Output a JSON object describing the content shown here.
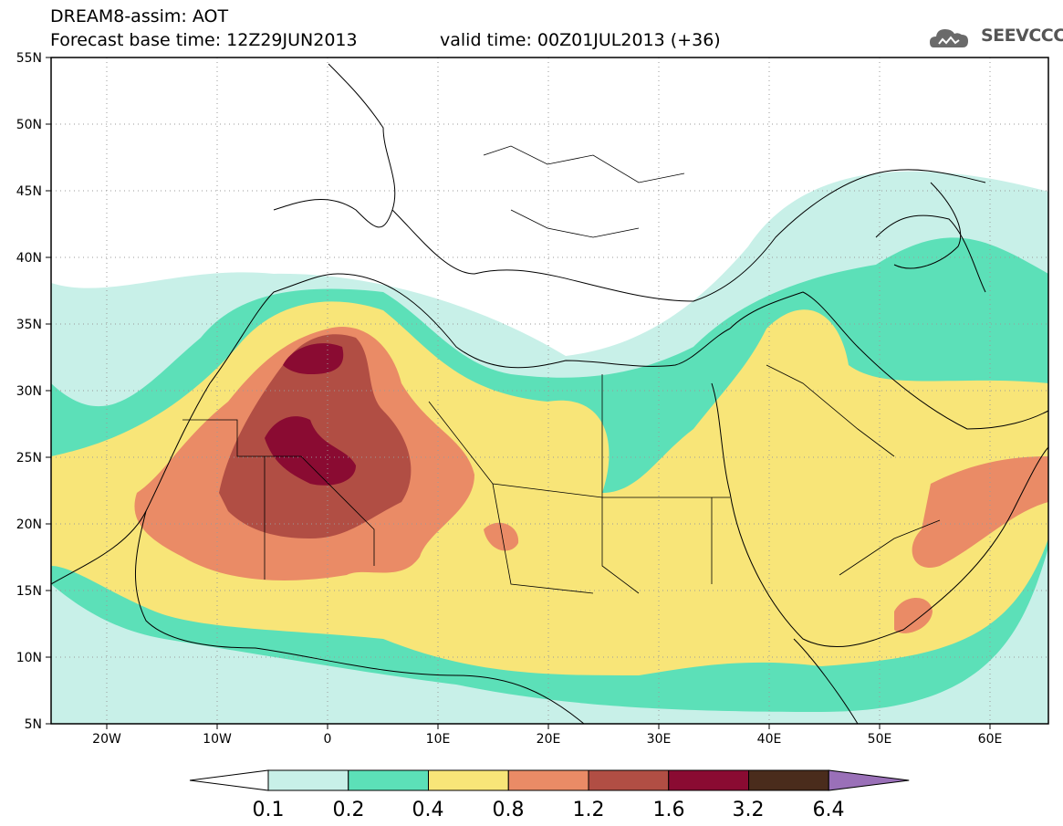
{
  "header": {
    "title_line1": "DREAM8-assim: AOT",
    "title_line2": "Forecast base time: 12Z29JUN2013",
    "valid_time": "valid time: 00Z01JUL2013 (+36)",
    "logo_text": "SEEVCCC"
  },
  "map": {
    "extent": {
      "lon": [
        -25,
        65
      ],
      "lat": [
        5,
        55
      ]
    },
    "lat_labels": [
      "55N",
      "50N",
      "45N",
      "40N",
      "35N",
      "30N",
      "25N",
      "20N",
      "15N",
      "10N",
      "5N"
    ],
    "lon_labels": [
      "20W",
      "10W",
      "0",
      "10E",
      "20E",
      "30E",
      "40E",
      "50E",
      "60E"
    ],
    "grid": "dotted"
  },
  "legend": {
    "levels": [
      "0.1",
      "0.2",
      "0.4",
      "0.8",
      "1.2",
      "1.6",
      "3.2",
      "6.4"
    ],
    "colors": [
      "#c8f0e8",
      "#5ce0b8",
      "#f8e578",
      "#ea8b66",
      "#b14e44",
      "#8a0b32",
      "#4a2c1c",
      "#9a70b8"
    ],
    "under_color": "#ffffff",
    "over_color": "#9a70b8"
  }
}
